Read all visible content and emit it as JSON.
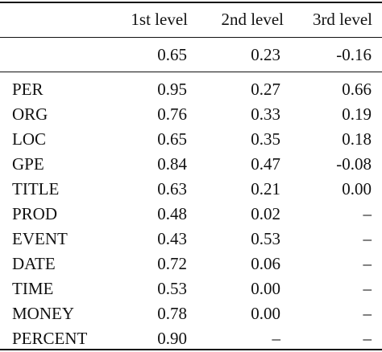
{
  "chart_data": {
    "type": "table",
    "columns": [
      "",
      "1st level",
      "2nd level",
      "3rd level"
    ],
    "summary_row": {
      "label": "",
      "values": [
        "0.65",
        "0.23",
        "-0.16"
      ]
    },
    "rows": [
      {
        "label": "PER",
        "values": [
          "0.95",
          "0.27",
          "0.66"
        ]
      },
      {
        "label": "ORG",
        "values": [
          "0.76",
          "0.33",
          "0.19"
        ]
      },
      {
        "label": "LOC",
        "values": [
          "0.65",
          "0.35",
          "0.18"
        ]
      },
      {
        "label": "GPE",
        "values": [
          "0.84",
          "0.47",
          "-0.08"
        ]
      },
      {
        "label": "TITLE",
        "values": [
          "0.63",
          "0.21",
          "0.00"
        ]
      },
      {
        "label": "PROD",
        "values": [
          "0.48",
          "0.02",
          "–"
        ]
      },
      {
        "label": "EVENT",
        "values": [
          "0.43",
          "0.53",
          "–"
        ]
      },
      {
        "label": "DATE",
        "values": [
          "0.72",
          "0.06",
          "–"
        ]
      },
      {
        "label": "TIME",
        "values": [
          "0.53",
          "0.00",
          "–"
        ]
      },
      {
        "label": "MONEY",
        "values": [
          "0.78",
          "0.00",
          "–"
        ]
      },
      {
        "label": "PERCENT",
        "values": [
          "0.90",
          "–",
          "–"
        ]
      }
    ]
  }
}
